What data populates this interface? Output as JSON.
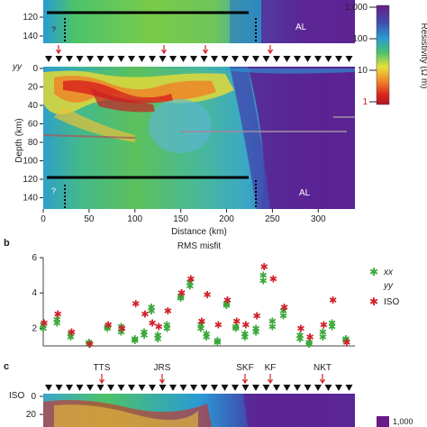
{
  "panel_a": {
    "yy_label": "yy",
    "depth_axis_label": "Depth (km)",
    "distance_axis_label": "Distance (km)",
    "top_strip_depth_ticks": [
      "120",
      "140"
    ],
    "depth_ticks": [
      "0",
      "20",
      "40",
      "60",
      "80",
      "100",
      "120",
      "140"
    ],
    "distance_ticks": [
      "0",
      "50",
      "100",
      "150",
      "200",
      "250",
      "300"
    ],
    "al_label": "AL",
    "question_mark": "?"
  },
  "colorbar": {
    "title": "Resistivity (Ω m)",
    "ticks": [
      "1,000",
      "100",
      "10",
      "1"
    ],
    "colors": [
      "#6a1b8a",
      "#3f4fb0",
      "#2a9bd3",
      "#4cc36a",
      "#e8e23a",
      "#f08a2a",
      "#d9261f",
      "#b21626"
    ]
  },
  "panel_b": {
    "letter": "b",
    "title": "RMS misfit",
    "y_ticks": [
      "6",
      "4",
      "2"
    ],
    "legend": [
      "xx",
      "yy",
      "ISO"
    ],
    "colors": {
      "xx": "#3aa83a",
      "iso": "#d0202a"
    }
  },
  "panel_c": {
    "letter": "c",
    "stations": [
      "TTS",
      "JRS",
      "SKF",
      "KF",
      "NKT"
    ],
    "row_label": "ISO",
    "depth_ticks": [
      "0",
      "20"
    ],
    "colorbar_tick": "1,000"
  },
  "chart_data": {
    "type": "scatter",
    "title": "RMS misfit",
    "xlabel": "",
    "ylabel": "",
    "ylim": [
      1,
      6
    ],
    "x_distance_km": [
      0,
      15,
      30,
      50,
      70,
      85,
      100,
      110,
      118,
      125,
      135,
      150,
      160,
      172,
      178,
      190,
      200,
      210,
      220,
      232,
      240,
      250,
      262,
      280,
      290,
      305,
      315,
      330
    ],
    "series": [
      {
        "name": "xx",
        "values": [
          2.0,
          2.3,
          1.5,
          1.1,
          2.0,
          1.8,
          1.3,
          1.6,
          3.0,
          1.4,
          2.0,
          3.7,
          4.4,
          2.0,
          1.5,
          1.2,
          3.3,
          2.0,
          1.5,
          1.8,
          4.7,
          2.1,
          2.7,
          1.4,
          1.1,
          1.5,
          2.1,
          1.3
        ]
      },
      {
        "name": "yy",
        "values": [
          2.2,
          2.5,
          1.7,
          1.2,
          2.1,
          2.1,
          1.4,
          1.8,
          3.2,
          1.6,
          2.2,
          3.8,
          4.6,
          2.2,
          1.7,
          1.3,
          3.4,
          2.1,
          1.7,
          2.0,
          5.0,
          2.4,
          3.0,
          1.6,
          1.2,
          1.8,
          2.3,
          1.4
        ]
      },
      {
        "name": "ISO",
        "values": [
          2.3,
          2.8,
          1.8,
          1.1,
          2.2,
          2.0,
          3.4,
          2.8,
          2.3,
          2.1,
          3.0,
          4.0,
          4.8,
          2.4,
          3.9,
          2.2,
          3.6,
          2.4,
          2.2,
          2.7,
          5.5,
          4.8,
          3.2,
          2.0,
          1.5,
          2.2,
          3.6,
          1.2
        ]
      }
    ]
  }
}
